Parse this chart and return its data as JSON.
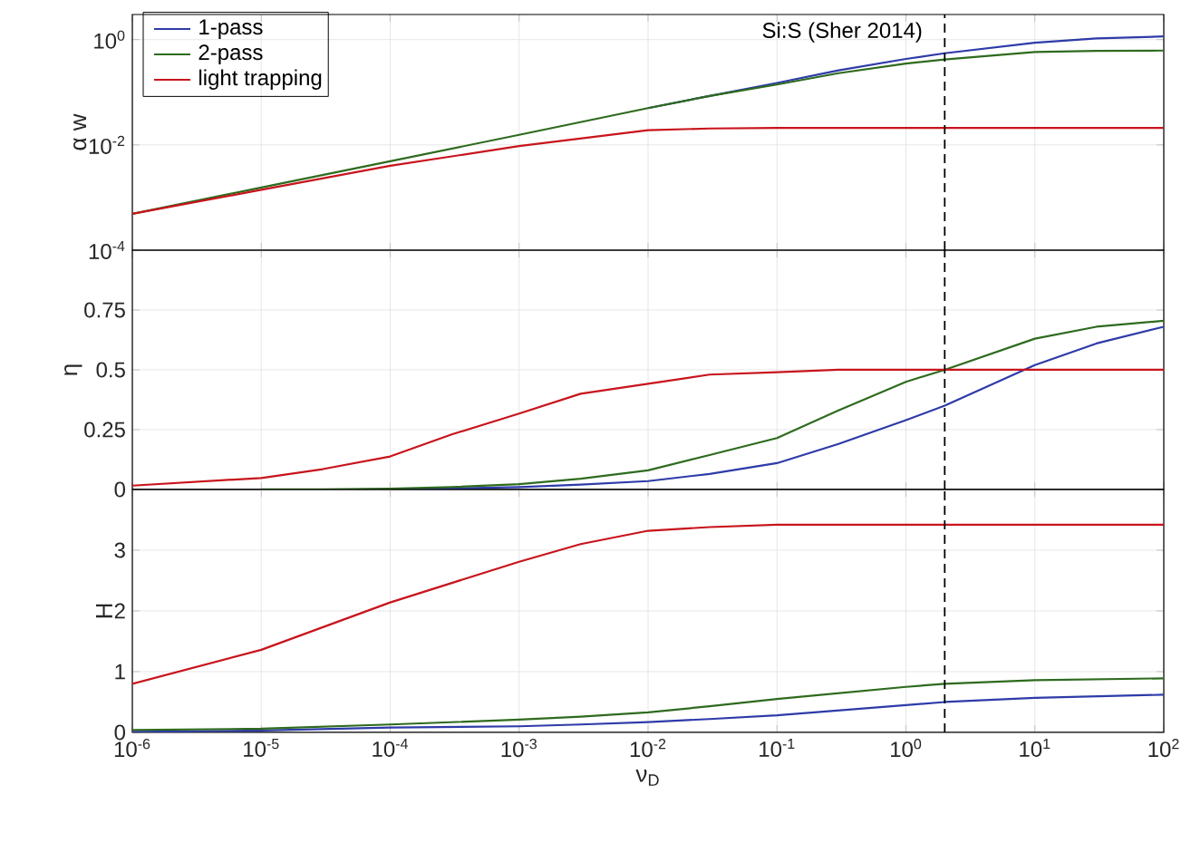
{
  "chart_data": [
    {
      "type": "line",
      "ylabel": "α w",
      "log": "xy",
      "grid": true,
      "legend": "top left",
      "marker": "none",
      "line_style": "solid",
      "tick_labels": "y",
      "x": [
        1e-06,
        1e-05,
        0.0001,
        0.001,
        0.01,
        0.03,
        0.1,
        0.3,
        1,
        2,
        10,
        30,
        100
      ],
      "series": [
        {
          "name": "1-pass",
          "color": "#2e3ba8",
          "values": [
            null,
            null,
            null,
            null,
            0.05,
            0.085,
            0.15,
            0.26,
            0.43,
            0.55,
            0.87,
            1.05,
            1.15
          ]
        },
        {
          "name": "2-pass",
          "color": "#2e6b1e",
          "values": [
            0.00049,
            0.00155,
            0.0049,
            0.0155,
            0.05,
            0.085,
            0.14,
            0.23,
            0.35,
            0.42,
            0.58,
            0.61,
            0.62
          ]
        },
        {
          "name": "light trapping",
          "color": "#c8141c",
          "values": [
            0.00049,
            0.0014,
            0.004,
            0.0095,
            0.019,
            0.0205,
            0.021,
            0.021,
            0.021,
            0.021,
            0.021,
            0.021,
            0.021
          ]
        }
      ],
      "xlim": [
        1e-06,
        100
      ],
      "xticks": [
        {
          "value": 1e-06,
          "label": null
        },
        {
          "value": 1e-05,
          "label": null
        },
        {
          "value": 0.0001,
          "label": null
        },
        {
          "value": 0.001,
          "label": null
        },
        {
          "value": 0.01,
          "label": null
        },
        {
          "value": 0.1,
          "label": null
        },
        {
          "value": 1,
          "label": null
        },
        {
          "value": 10,
          "label": null
        },
        {
          "value": 100,
          "label": null
        }
      ],
      "ylim": [
        0.0001,
        3
      ],
      "yticks": [
        {
          "value": 0.0001,
          "label": "10$^{-4}$"
        },
        {
          "value": 0.01,
          "label": "10$^{-2}$"
        },
        {
          "value": 1,
          "label": "10$^{0}$"
        }
      ],
      "ref_lines": [
        {
          "axis": "x",
          "value": 2,
          "label": "Si:S (Sher 2014)",
          "color": "#000000",
          "line_style": "dashed"
        }
      ]
    },
    {
      "type": "line",
      "ylabel": "η",
      "log": "x",
      "grid": true,
      "marker": "none",
      "line_style": "solid",
      "tick_labels": "y",
      "x": [
        1e-06,
        1e-05,
        3e-05,
        0.0001,
        0.0003,
        0.001,
        0.003,
        0.01,
        0.03,
        0.1,
        0.3,
        1,
        2,
        10,
        30,
        100
      ],
      "series": [
        {
          "color": "#2e3ba8",
          "values": [
            null,
            null,
            null,
            0.001,
            0.004,
            0.01,
            0.02,
            0.035,
            0.065,
            0.11,
            0.19,
            0.29,
            0.35,
            0.52,
            0.61,
            0.68
          ]
        },
        {
          "color": "#2e6b1e",
          "values": [
            null,
            0,
            0,
            0.003,
            0.01,
            0.022,
            0.045,
            0.08,
            0.144,
            0.215,
            0.33,
            0.45,
            0.5,
            0.63,
            0.68,
            0.705
          ]
        },
        {
          "color": "#c8141c",
          "values": [
            0.016,
            0.048,
            0.085,
            0.138,
            0.23,
            0.317,
            0.4,
            0.442,
            0.48,
            0.49,
            0.5,
            0.5,
            0.5,
            0.5,
            0.5,
            0.5
          ]
        }
      ],
      "xlim": [
        1e-06,
        100
      ],
      "xticks": [
        {
          "value": 1e-06,
          "label": null
        },
        {
          "value": 1e-05,
          "label": null
        },
        {
          "value": 0.0001,
          "label": null
        },
        {
          "value": 0.001,
          "label": null
        },
        {
          "value": 0.01,
          "label": null
        },
        {
          "value": 0.1,
          "label": null
        },
        {
          "value": 1,
          "label": null
        },
        {
          "value": 10,
          "label": null
        },
        {
          "value": 100,
          "label": null
        }
      ],
      "ylim": [
        0,
        1
      ],
      "yticks": [
        0,
        0.25,
        0.5,
        0.75
      ],
      "ref_lines": [
        {
          "axis": "x",
          "value": 2,
          "color": "#000000",
          "line_style": "dashed"
        }
      ]
    },
    {
      "type": "line",
      "ylabel": "H",
      "xlabel": "ν$_{D}$",
      "log": "x",
      "grid": true,
      "marker": "none",
      "line_style": "solid",
      "x": [
        1e-06,
        1e-05,
        0.0001,
        0.001,
        0.003,
        0.01,
        0.03,
        0.1,
        1,
        2,
        10,
        100
      ],
      "series": [
        {
          "color": "#2e3ba8",
          "values": [
            0.01,
            0.03,
            0.08,
            0.1,
            0.13,
            0.17,
            0.22,
            0.28,
            0.45,
            0.5,
            0.57,
            0.62
          ]
        },
        {
          "color": "#2e6b1e",
          "values": [
            0.04,
            0.06,
            0.13,
            0.21,
            0.26,
            0.33,
            0.43,
            0.55,
            0.75,
            0.8,
            0.86,
            0.89
          ]
        },
        {
          "color": "#c8141c",
          "values": [
            0.8,
            1.36,
            2.14,
            2.81,
            3.1,
            3.32,
            3.38,
            3.42,
            3.42,
            3.42,
            3.42,
            3.42
          ]
        }
      ],
      "xlim": [
        1e-06,
        100
      ],
      "xticks": [
        {
          "value": 1e-06,
          "label": "10$^{-6}$"
        },
        {
          "value": 1e-05,
          "label": "10$^{-5}$"
        },
        {
          "value": 0.0001,
          "label": "10$^{-4}$"
        },
        {
          "value": 0.001,
          "label": "10$^{-3}$"
        },
        {
          "value": 0.01,
          "label": "10$^{-2}$"
        },
        {
          "value": 0.1,
          "label": "10$^{-1}$"
        },
        {
          "value": 1,
          "label": "10$^{0}$"
        },
        {
          "value": 10,
          "label": "10$^{1}$"
        },
        {
          "value": 100,
          "label": "10$^{2}$"
        }
      ],
      "ylim": [
        0,
        4
      ],
      "yticks": [
        0,
        1,
        2,
        3
      ],
      "ref_lines": [
        {
          "axis": "x",
          "value": 2,
          "color": "#000000",
          "line_style": "dashed"
        }
      ]
    }
  ]
}
